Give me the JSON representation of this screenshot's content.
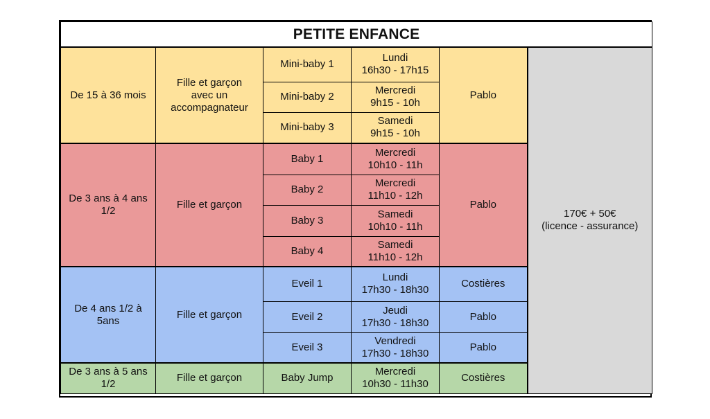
{
  "title": "PETITE ENFANCE",
  "price": {
    "line1": "170€ + 50€",
    "line2": "(licence - assurance)"
  },
  "colors": {
    "yellow": "#fee29b",
    "red": "#ea9999",
    "blue": "#a4c2f4",
    "green": "#b6d7a8",
    "grey": "#d9d9d9"
  },
  "groups": [
    {
      "age": "De 15 à 36 mois",
      "who": "Fille et garçon avec un accompagnateur",
      "color": "yellow",
      "classes": [
        {
          "name": "Mini-baby 1",
          "day": "Lundi",
          "time": "16h30 - 17h15"
        },
        {
          "name": "Mini-baby 2",
          "day": "Mercredi",
          "time": "9h15 - 10h"
        },
        {
          "name": "Mini-baby 3",
          "day": "Samedi",
          "time": "9h15 - 10h"
        }
      ],
      "place": "Pablo"
    },
    {
      "age": "De 3 ans à 4 ans 1/2",
      "who": "Fille et garçon",
      "color": "red",
      "classes": [
        {
          "name": "Baby 1",
          "day": "Mercredi",
          "time": "10h10 - 11h"
        },
        {
          "name": "Baby 2",
          "day": "Mercredi",
          "time": "11h10 - 12h"
        },
        {
          "name": "Baby 3",
          "day": "Samedi",
          "time": "10h10 - 11h"
        },
        {
          "name": "Baby 4",
          "day": "Samedi",
          "time": "11h10 - 12h"
        }
      ],
      "place": "Pablo"
    },
    {
      "age": "De 4 ans 1/2 à 5ans",
      "who": "Fille et garçon",
      "color": "blue",
      "classes": [
        {
          "name": "Eveil 1",
          "day": "Lundi",
          "time": "17h30 - 18h30",
          "place": "Costières"
        },
        {
          "name": "Eveil 2",
          "day": "Jeudi",
          "time": "17h30 - 18h30",
          "place": "Pablo"
        },
        {
          "name": "Eveil 3",
          "day": "Vendredi",
          "time": "17h30 - 18h30",
          "place": "Pablo"
        }
      ]
    },
    {
      "age": "De 3 ans à 5 ans 1/2",
      "who": "Fille et garçon",
      "color": "green",
      "classes": [
        {
          "name": "Baby Jump",
          "day": "Mercredi",
          "time": "10h30 - 11h30",
          "place": "Costières"
        }
      ]
    }
  ]
}
